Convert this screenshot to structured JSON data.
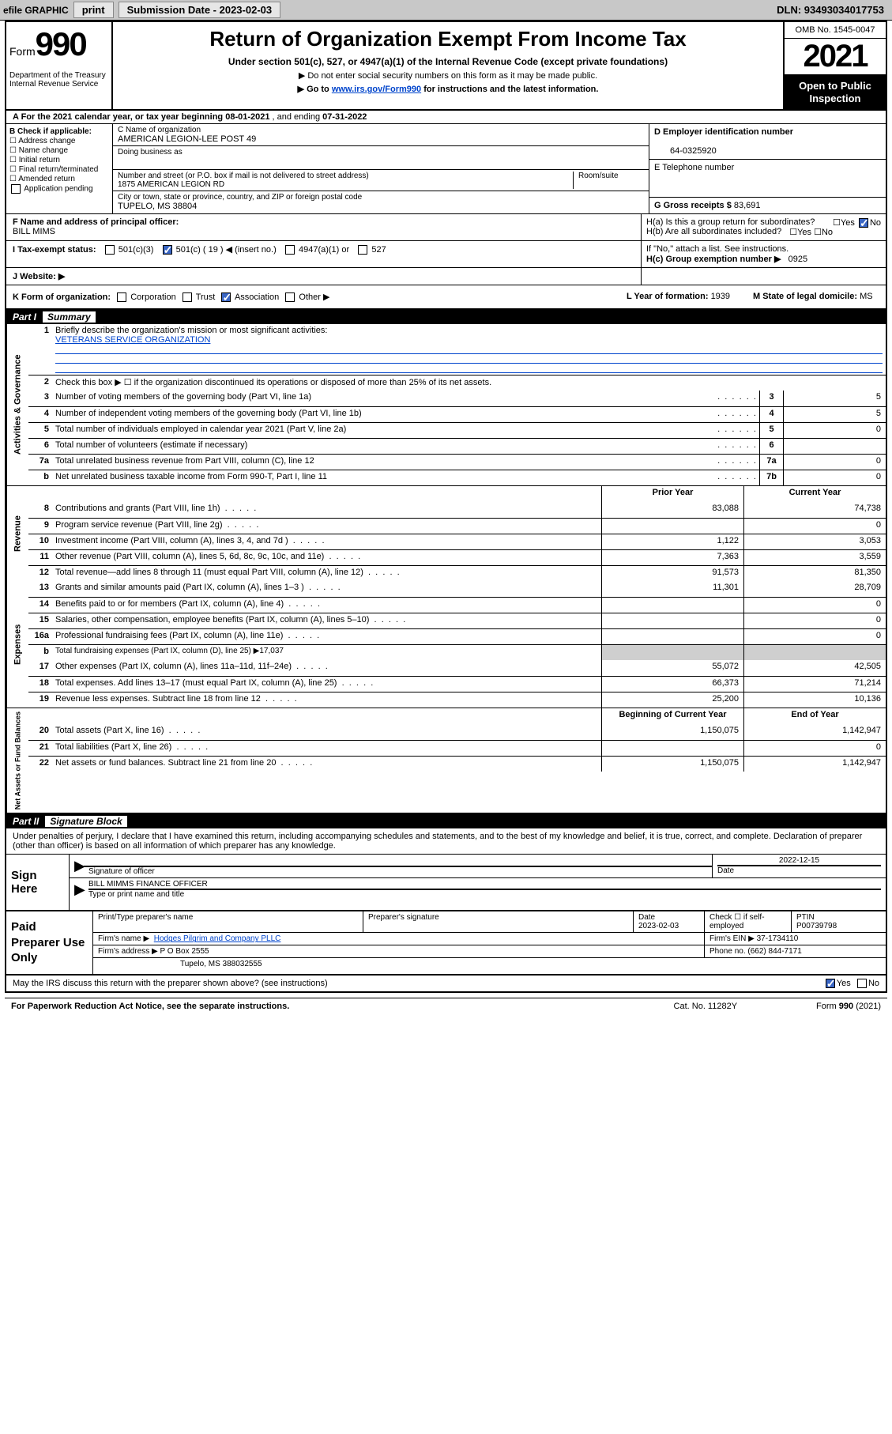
{
  "topbar": {
    "efile": "efile GRAPHIC",
    "print": "print",
    "sub_label": "Submission Date - ",
    "sub_date": "2023-02-03",
    "dln": "DLN: 93493034017753"
  },
  "header": {
    "form_prefix": "Form",
    "form_no": "990",
    "dept": "Department of the Treasury",
    "irs": "Internal Revenue Service",
    "title": "Return of Organization Exempt From Income Tax",
    "sub1": "Under section 501(c), 527, or 4947(a)(1) of the Internal Revenue Code (except private foundations)",
    "sub2": "▶ Do not enter social security numbers on this form as it may be made public.",
    "sub3_pre": "▶ Go to ",
    "sub3_link": "www.irs.gov/Form990",
    "sub3_post": " for instructions and the latest information.",
    "omb": "OMB No. 1545-0047",
    "year": "2021",
    "open": "Open to Public Inspection"
  },
  "rowA": {
    "text_pre": "A  For the 2021 calendar year, or tax year beginning ",
    "begin": "08-01-2021",
    "mid": " , and ending ",
    "end": "07-31-2022"
  },
  "sectionB": {
    "heading": "B Check if applicable:",
    "items": [
      "Address change",
      "Name change",
      "Initial return",
      "Final return/terminated",
      "Amended return",
      "Application pending"
    ]
  },
  "sectionC": {
    "c_label": "C Name of organization",
    "c_value": "AMERICAN LEGION-LEE POST 49",
    "dba_label": "Doing business as",
    "addr_label": "Number and street (or P.O. box if mail is not delivered to street address)",
    "addr_value": "1875 AMERICAN LEGION RD",
    "room_label": "Room/suite",
    "city_label": "City or town, state or province, country, and ZIP or foreign postal code",
    "city_value": "TUPELO, MS  38804"
  },
  "sectionD": {
    "d_label": "D Employer identification number",
    "d_value": "64-0325920",
    "e_label": "E Telephone number",
    "g_label": "G Gross receipts $",
    "g_value": "83,691"
  },
  "sectionF": {
    "f_label": "F  Name and address of principal officer:",
    "f_value": "BILL MIMS",
    "ha": "H(a)  Is this a group return for subordinates?",
    "hb": "H(b)  Are all subordinates included?",
    "hb_note": "If \"No,\" attach a list. See instructions.",
    "hc": "H(c)  Group exemption number ▶",
    "hc_val": "0925",
    "yes": "Yes",
    "no": "No"
  },
  "rowI": {
    "label": "I   Tax-exempt status:",
    "o1": "501(c)(3)",
    "o2_pre": "501(c) ( ",
    "o2_num": "19",
    "o2_post": " ) ◀ (insert no.)",
    "o3": "4947(a)(1) or",
    "o4": "527"
  },
  "rowJ": {
    "label": "J   Website: ▶"
  },
  "rowK": {
    "label": "K Form of organization:",
    "opts": [
      "Corporation",
      "Trust",
      "Association",
      "Other ▶"
    ],
    "l_label": "L Year of formation: ",
    "l_val": "1939",
    "m_label": "M State of legal domicile: ",
    "m_val": "MS"
  },
  "part1": {
    "title": "Part I",
    "sub": "Summary"
  },
  "governance": {
    "label": "Activities & Governance",
    "l1": "Briefly describe the organization's mission or most significant activities:",
    "l1_val": "VETERANS SERVICE ORGANIZATION",
    "l2": "Check this box ▶ ☐  if the organization discontinued its operations or disposed of more than 25% of its net assets.",
    "rows": [
      {
        "n": "3",
        "t": "Number of voting members of the governing body (Part VI, line 1a)",
        "b": "3",
        "v": "5"
      },
      {
        "n": "4",
        "t": "Number of independent voting members of the governing body (Part VI, line 1b)",
        "b": "4",
        "v": "5"
      },
      {
        "n": "5",
        "t": "Total number of individuals employed in calendar year 2021 (Part V, line 2a)",
        "b": "5",
        "v": "0"
      },
      {
        "n": "6",
        "t": "Total number of volunteers (estimate if necessary)",
        "b": "6",
        "v": ""
      },
      {
        "n": "7a",
        "t": "Total unrelated business revenue from Part VIII, column (C), line 12",
        "b": "7a",
        "v": "0"
      },
      {
        "n": "b",
        "t": "Net unrelated business taxable income from Form 990-T, Part I, line 11",
        "b": "7b",
        "v": "0"
      }
    ]
  },
  "yrhdr": {
    "prior": "Prior Year",
    "current": "Current Year"
  },
  "revenue": {
    "label": "Revenue",
    "rows": [
      {
        "n": "8",
        "t": "Contributions and grants (Part VIII, line 1h)",
        "p": "83,088",
        "c": "74,738"
      },
      {
        "n": "9",
        "t": "Program service revenue (Part VIII, line 2g)",
        "p": "",
        "c": "0"
      },
      {
        "n": "10",
        "t": "Investment income (Part VIII, column (A), lines 3, 4, and 7d )",
        "p": "1,122",
        "c": "3,053"
      },
      {
        "n": "11",
        "t": "Other revenue (Part VIII, column (A), lines 5, 6d, 8c, 9c, 10c, and 11e)",
        "p": "7,363",
        "c": "3,559"
      },
      {
        "n": "12",
        "t": "Total revenue—add lines 8 through 11 (must equal Part VIII, column (A), line 12)",
        "p": "91,573",
        "c": "81,350"
      }
    ]
  },
  "expenses": {
    "label": "Expenses",
    "rows": [
      {
        "n": "13",
        "t": "Grants and similar amounts paid (Part IX, column (A), lines 1–3 )",
        "p": "11,301",
        "c": "28,709"
      },
      {
        "n": "14",
        "t": "Benefits paid to or for members (Part IX, column (A), line 4)",
        "p": "",
        "c": "0"
      },
      {
        "n": "15",
        "t": "Salaries, other compensation, employee benefits (Part IX, column (A), lines 5–10)",
        "p": "",
        "c": "0"
      },
      {
        "n": "16a",
        "t": "Professional fundraising fees (Part IX, column (A), line 11e)",
        "p": "",
        "c": "0"
      }
    ],
    "b_row": {
      "n": "b",
      "t": "Total fundraising expenses (Part IX, column (D), line 25) ▶17,037"
    },
    "rows2": [
      {
        "n": "17",
        "t": "Other expenses (Part IX, column (A), lines 11a–11d, 11f–24e)",
        "p": "55,072",
        "c": "42,505"
      },
      {
        "n": "18",
        "t": "Total expenses. Add lines 13–17 (must equal Part IX, column (A), line 25)",
        "p": "66,373",
        "c": "71,214"
      },
      {
        "n": "19",
        "t": "Revenue less expenses. Subtract line 18 from line 12",
        "p": "25,200",
        "c": "10,136"
      }
    ]
  },
  "net": {
    "label": "Net Assets or Fund Balances",
    "hdr_b": "Beginning of Current Year",
    "hdr_e": "End of Year",
    "rows": [
      {
        "n": "20",
        "t": "Total assets (Part X, line 16)",
        "p": "1,150,075",
        "c": "1,142,947"
      },
      {
        "n": "21",
        "t": "Total liabilities (Part X, line 26)",
        "p": "",
        "c": "0"
      },
      {
        "n": "22",
        "t": "Net assets or fund balances. Subtract line 21 from line 20",
        "p": "1,150,075",
        "c": "1,142,947"
      }
    ]
  },
  "part2": {
    "title": "Part II",
    "sub": "Signature Block"
  },
  "sigtext": "Under penalties of perjury, I declare that I have examined this return, including accompanying schedules and statements, and to the best of my knowledge and belief, it is true, correct, and complete. Declaration of preparer (other than officer) is based on all information of which preparer has any knowledge.",
  "sign": {
    "label": "Sign Here",
    "sig_of_officer": "Signature of officer",
    "date_lbl": "Date",
    "date": "2022-12-15",
    "name": "BILL MIMMS FINANCE OFFICER",
    "name_lbl": "Type or print name and title"
  },
  "prep": {
    "label": "Paid Preparer Use Only",
    "h1": "Print/Type preparer's name",
    "h2": "Preparer's signature",
    "h3": "Date",
    "h3v": "2023-02-03",
    "h4": "Check ☐ if self-employed",
    "h5": "PTIN",
    "h5v": "P00739798",
    "firm_lbl": "Firm's name   ▶",
    "firm": "Hodges Pilgrim and Company PLLC",
    "ein_lbl": "Firm's EIN ▶",
    "ein": "37-1734110",
    "addr_lbl": "Firm's address ▶",
    "addr1": "P O Box 2555",
    "addr2": "Tupelo, MS  388032555",
    "phone_lbl": "Phone no.",
    "phone": "(662) 844-7171"
  },
  "footer": {
    "q": "May the IRS discuss this return with the preparer shown above? (see instructions)",
    "paperwork": "For Paperwork Reduction Act Notice, see the separate instructions.",
    "cat": "Cat. No. 11282Y",
    "form": "Form 990 (2021)",
    "yes": "Yes",
    "no": "No"
  }
}
